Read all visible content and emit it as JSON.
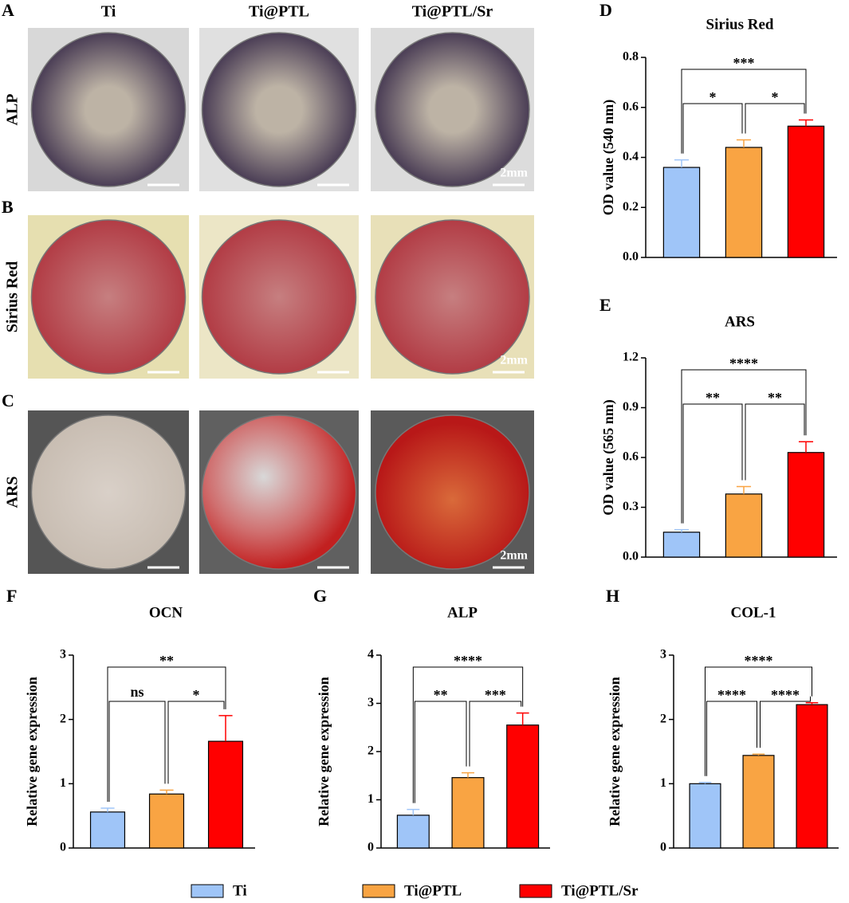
{
  "photos": {
    "panels": [
      "A",
      "B",
      "C"
    ],
    "columns": [
      "Ti",
      "Ti@PTL",
      "Ti@PTL/Sr"
    ],
    "rows": [
      "ALP",
      "Sirius Red",
      "ARS"
    ],
    "scale_label": "2mm"
  },
  "legend": [
    {
      "name": "Ti",
      "color": "#9fc5f8"
    },
    {
      "name": "Ti@PTL",
      "color": "#f9a443"
    },
    {
      "name": "Ti@PTL/Sr",
      "color": "#ff0000"
    }
  ],
  "chart_data": [
    {
      "type": "bar",
      "panel": "D",
      "title": "Sirius Red",
      "ylabel": "OD value (540 nm)",
      "values": [
        0.36,
        0.44,
        0.525
      ],
      "errors": [
        0.03,
        0.03,
        0.025
      ],
      "ylim": [
        0,
        0.8
      ],
      "yticks": [
        {
          "value": 0,
          "label": "0.0"
        },
        0.2,
        0.4,
        0.6,
        0.8
      ],
      "significance": [
        {
          "label": "*",
          "from": 0,
          "to": 1
        },
        {
          "label": "*",
          "from": 1,
          "to": 2
        },
        {
          "label": "***",
          "from": 0,
          "to": 2
        }
      ]
    },
    {
      "type": "bar",
      "panel": "E",
      "title": "ARS",
      "ylabel": "OD value (565 nm)",
      "values": [
        0.15,
        0.38,
        0.63
      ],
      "errors": [
        0.015,
        0.045,
        0.065
      ],
      "ylim": [
        0,
        1.2
      ],
      "yticks": [
        {
          "value": 0,
          "label": "0.0"
        },
        0.3,
        0.6,
        0.9,
        1.2
      ],
      "significance": [
        {
          "label": "**",
          "from": 0,
          "to": 1
        },
        {
          "label": "**",
          "from": 1,
          "to": 2
        },
        {
          "label": "****",
          "from": 0,
          "to": 2
        }
      ]
    },
    {
      "type": "bar",
      "panel": "F",
      "title": "OCN",
      "ylabel": "Relative gene expression",
      "values": [
        0.56,
        0.84,
        1.66
      ],
      "errors": [
        0.06,
        0.06,
        0.4
      ],
      "ylim": [
        0,
        3
      ],
      "yticks": [
        0,
        1,
        2,
        3
      ],
      "significance": [
        {
          "label": "ns",
          "from": 0,
          "to": 1
        },
        {
          "label": "*",
          "from": 1,
          "to": 2
        },
        {
          "label": "**",
          "from": 0,
          "to": 2
        }
      ]
    },
    {
      "type": "bar",
      "panel": "G",
      "title": "ALP",
      "ylabel": "Relative gene expression",
      "values": [
        0.68,
        1.46,
        2.55
      ],
      "errors": [
        0.12,
        0.1,
        0.25
      ],
      "ylim": [
        0,
        4
      ],
      "yticks": [
        0,
        1,
        2,
        3,
        4
      ],
      "significance": [
        {
          "label": "**",
          "from": 0,
          "to": 1
        },
        {
          "label": "***",
          "from": 1,
          "to": 2
        },
        {
          "label": "****",
          "from": 0,
          "to": 2
        }
      ]
    },
    {
      "type": "bar",
      "panel": "H",
      "title": "COL-1",
      "ylabel": "Relative gene expression",
      "values": [
        1.0,
        1.44,
        2.23
      ],
      "errors": [
        0.02,
        0.02,
        0.03
      ],
      "ylim": [
        0,
        3
      ],
      "yticks": [
        0,
        1,
        2,
        3
      ],
      "significance": [
        {
          "label": "****",
          "from": 0,
          "to": 1
        },
        {
          "label": "****",
          "from": 1,
          "to": 2
        },
        {
          "label": "****",
          "from": 0,
          "to": 2
        }
      ]
    }
  ]
}
